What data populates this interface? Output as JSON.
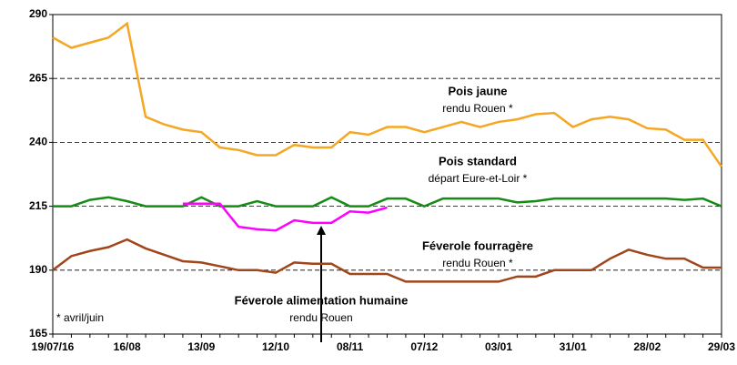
{
  "chart_data": {
    "type": "line",
    "categories": [
      "19/07/16",
      null,
      null,
      null,
      "16/08",
      null,
      null,
      null,
      "13/09",
      null,
      null,
      null,
      "12/10",
      null,
      null,
      null,
      "08/11",
      null,
      null,
      null,
      "07/12",
      null,
      null,
      null,
      "03/01",
      null,
      null,
      null,
      "31/01",
      null,
      null,
      null,
      "28/02",
      null,
      null,
      null,
      "29/03"
    ],
    "series": [
      {
        "name": "Pois jaune",
        "note": "rendu Rouen *",
        "color": "#f5a623",
        "values": [
          281,
          277,
          279,
          281,
          286.5,
          250,
          247,
          245,
          244,
          238,
          237,
          235,
          235,
          239,
          238,
          238,
          244,
          243,
          246,
          246,
          244,
          246,
          248,
          246,
          248,
          249,
          251,
          251.5,
          246,
          249,
          250,
          249,
          245.5,
          245,
          241,
          241,
          230.5
        ]
      },
      {
        "name": "Pois standard",
        "note": "départ Eure-et-Loir *",
        "color": "#168c16",
        "values": [
          215,
          215,
          217.5,
          218.5,
          217,
          215,
          215,
          215,
          218.5,
          215,
          215,
          217,
          215,
          215,
          215,
          218.5,
          215,
          215,
          218,
          218,
          215,
          218,
          218,
          218,
          218,
          216.5,
          217,
          218,
          218,
          218,
          218,
          218,
          218,
          218,
          217.5,
          218,
          215
        ]
      },
      {
        "name": "Féverole alimentation humaine",
        "note": "rendu Rouen",
        "color": "#ff00ff",
        "values": [
          null,
          null,
          null,
          null,
          null,
          null,
          null,
          216,
          216,
          216,
          207,
          206,
          205.5,
          209.5,
          208.5,
          208.5,
          213,
          212.5,
          214.5,
          null,
          null,
          null,
          null,
          null,
          null,
          null,
          null,
          null,
          null,
          null,
          null,
          null,
          null,
          null,
          null,
          null,
          null
        ]
      },
      {
        "name": "Féverole fourragère",
        "note": "rendu Rouen *",
        "color": "#a0461a",
        "values": [
          190,
          195.5,
          197.5,
          199,
          202,
          198.5,
          196,
          193.5,
          193,
          191.5,
          190,
          190,
          189,
          193,
          192.5,
          192.5,
          188.5,
          188.5,
          188.5,
          185.5,
          185.5,
          185.5,
          185.5,
          185.5,
          185.5,
          187.5,
          187.5,
          190,
          190,
          190,
          194.5,
          198,
          196,
          194.5,
          194.5,
          191,
          191
        ]
      }
    ],
    "footnote": "* avril/juin",
    "ylim": [
      165,
      290
    ],
    "yticks": [
      165,
      190,
      215,
      240,
      265,
      290
    ],
    "grid": true
  }
}
